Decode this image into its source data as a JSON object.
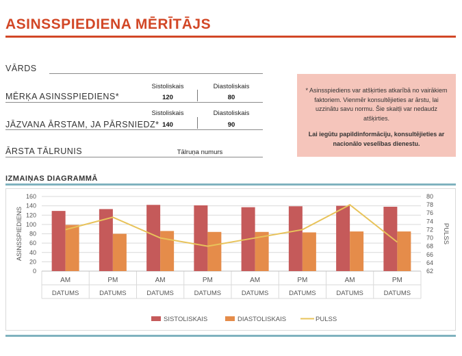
{
  "header": {
    "title": "ASINSSPIEDIENA MĒRĪTĀJS"
  },
  "form": {
    "name_label": "VĀRDS",
    "target_label": "MĒRĶA ASINSSPIEDIENS*",
    "call_label": "JĀZVANA ĀRSTAM, JA PĀRSNIEDZ*",
    "phone_label": "ĀRSTA TĀLRUNIS",
    "phone_placeholder": "Tālruņa numurs",
    "systolic_label": "Sistoliskais",
    "diastolic_label": "Diastoliskais",
    "target_systolic": "120",
    "target_diastolic": "80",
    "call_systolic": "140",
    "call_diastolic": "90"
  },
  "note": {
    "text": "* Asinsspiediens var atšķirties atkarībā no vairākiem faktoriem.  Vienmēr konsultējieties ar ārstu, lai uzzinātu savu normu. Šie skaitļi var nedaudz atšķirties.",
    "bold_text": "Lai iegūtu papildinformāciju, konsultējieties ar nacionālo veselības dienestu."
  },
  "chart_section": {
    "title": "IZMAIŅAS DIAGRAMMĀ"
  },
  "colors": {
    "accent": "#d24726",
    "note_bg": "#f5c5bb",
    "teal": "#7fb2be",
    "systolic": "#c55a5a",
    "diastolic": "#e58c4a",
    "pulse": "#e8c35a"
  },
  "chart_data": {
    "type": "bar",
    "categories": [
      "AM",
      "PM",
      "AM",
      "PM",
      "AM",
      "PM",
      "AM",
      "PM"
    ],
    "category_group_labels": [
      "DATUMS",
      "DATUMS",
      "DATUMS",
      "DATUMS",
      "DATUMS",
      "DATUMS",
      "DATUMS",
      "DATUMS"
    ],
    "series": [
      {
        "name": "SISTOLISKAIS",
        "type": "bar",
        "axis": "left",
        "values": [
          129,
          133,
          142,
          141,
          137,
          139,
          140,
          138
        ]
      },
      {
        "name": "DIASTOLISKAIS",
        "type": "bar",
        "axis": "left",
        "values": [
          99,
          80,
          86,
          84,
          84,
          83,
          85,
          85
        ]
      },
      {
        "name": "PULSS",
        "type": "line",
        "axis": "right",
        "values": [
          72,
          75,
          70,
          68,
          70,
          72,
          78,
          69
        ]
      }
    ],
    "ylabel": "ASINSSPIEDIENS",
    "ylim": [
      0,
      160
    ],
    "yticks": [
      0,
      20,
      40,
      60,
      80,
      100,
      120,
      140,
      160
    ],
    "y2label": "PULSS",
    "y2lim": [
      62,
      80
    ],
    "y2ticks": [
      62,
      64,
      66,
      68,
      70,
      72,
      74,
      76,
      78,
      80
    ],
    "legend": "bottom"
  }
}
